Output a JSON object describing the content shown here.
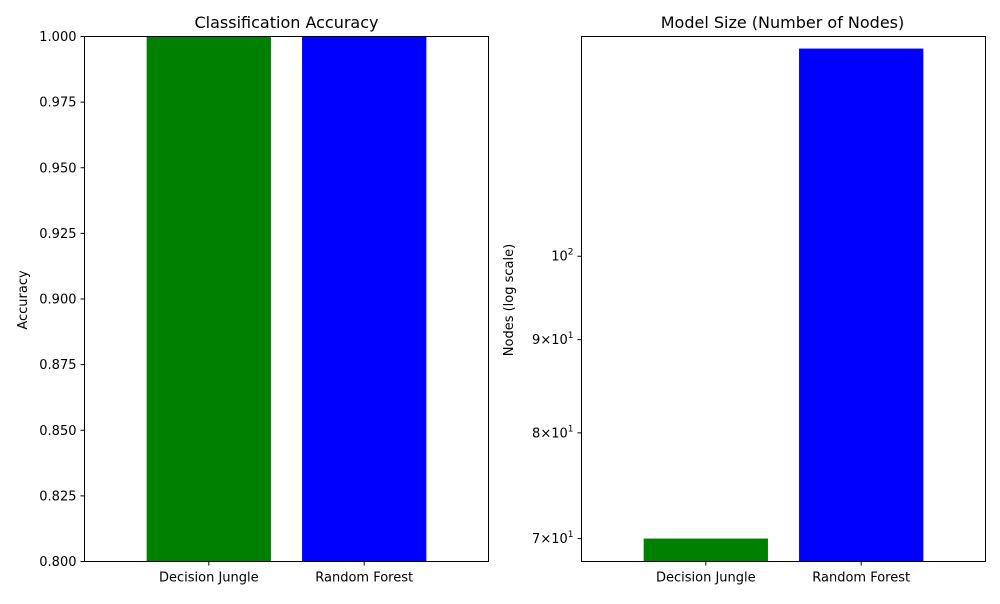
{
  "chart_data": [
    {
      "type": "bar",
      "title": "Classification Accuracy",
      "xlabel": "",
      "ylabel": "Accuracy",
      "categories": [
        "Decision Jungle",
        "Random Forest"
      ],
      "values": [
        1.0,
        1.0
      ],
      "colors": [
        "#008000",
        "#0000ff"
      ],
      "ylim": [
        0.8,
        1.0
      ],
      "yscale": "linear",
      "yticks": [
        {
          "value": 0.8,
          "label": "0.800"
        },
        {
          "value": 0.825,
          "label": "0.825"
        },
        {
          "value": 0.85,
          "label": "0.850"
        },
        {
          "value": 0.875,
          "label": "0.875"
        },
        {
          "value": 0.9,
          "label": "0.900"
        },
        {
          "value": 0.925,
          "label": "0.925"
        },
        {
          "value": 0.95,
          "label": "0.950"
        },
        {
          "value": 0.975,
          "label": "0.975"
        },
        {
          "value": 1.0,
          "label": "1.000"
        }
      ],
      "grid": false,
      "legend": "none"
    },
    {
      "type": "bar",
      "title": "Model Size (Number of Nodes)",
      "xlabel": "",
      "ylabel": "Nodes (log scale)",
      "categories": [
        "Decision Jungle",
        "Random Forest"
      ],
      "values": [
        70,
        130
      ],
      "colors": [
        "#008000",
        "#0000ff"
      ],
      "ylim": [
        68,
        132
      ],
      "yscale": "log",
      "yticks": [
        {
          "value": 70,
          "mantissa": "7",
          "base": "10",
          "exp": "1"
        },
        {
          "value": 80,
          "mantissa": "8",
          "base": "10",
          "exp": "1"
        },
        {
          "value": 90,
          "mantissa": "9",
          "base": "10",
          "exp": "1"
        },
        {
          "value": 100,
          "mantissa": "",
          "base": "10",
          "exp": "2"
        }
      ],
      "grid": false,
      "legend": "none"
    }
  ]
}
